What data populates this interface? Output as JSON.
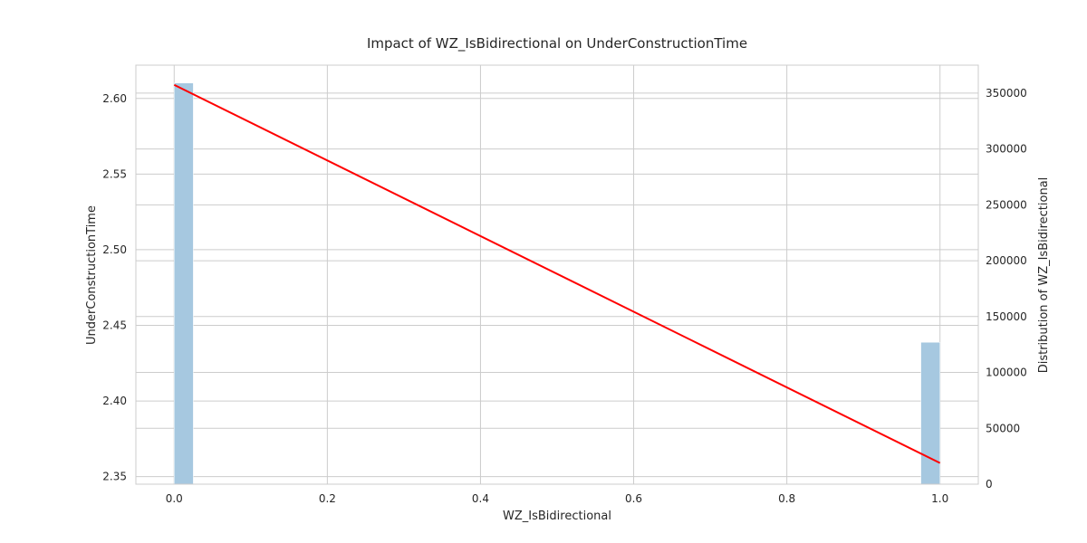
{
  "chart_data": {
    "type": "bar",
    "title": "Impact of WZ_IsBidirectional on UnderConstructionTime",
    "xlabel": "WZ_IsBidirectional",
    "ylabel": "UnderConstructionTime",
    "ylabel_right": "Distribution of WZ_IsBidirectional",
    "xlim": [
      -0.05,
      1.05
    ],
    "ylim": [
      2.345,
      2.622
    ],
    "ylim_right": [
      0,
      375000
    ],
    "x_ticks": [
      "0.0",
      "0.2",
      "0.4",
      "0.6",
      "0.8",
      "1.0"
    ],
    "y_ticks": [
      "2.35",
      "2.40",
      "2.45",
      "2.50",
      "2.55",
      "2.60"
    ],
    "y_ticks_right": [
      "0",
      "50000",
      "100000",
      "150000",
      "200000",
      "250000",
      "300000",
      "350000"
    ],
    "grid": true,
    "series": [
      {
        "kind": "histogram",
        "axis": "right",
        "color": "#a6c8e0",
        "bins": [
          {
            "x0": 0.0,
            "x1": 0.025,
            "count": 359000
          },
          {
            "x0": 0.975,
            "x1": 1.0,
            "count": 127000
          }
        ]
      },
      {
        "kind": "line",
        "axis": "left",
        "color": "#ff0000",
        "x": [
          0.0,
          1.0
        ],
        "y": [
          2.609,
          2.359
        ]
      }
    ]
  }
}
